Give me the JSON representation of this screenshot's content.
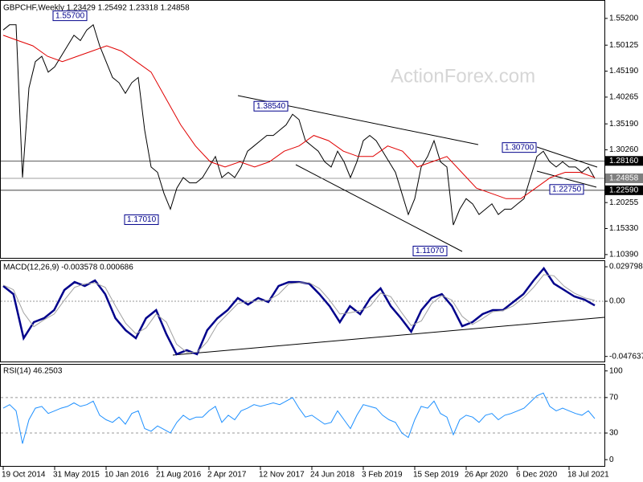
{
  "chart_data": [
    {
      "type": "line",
      "title": "GBPCHF,Weekly  1.23429 1.25492 1.23318 1.24858",
      "watermark": "ActionForex.com",
      "ylim": [
        1.0961,
        1.5854
      ],
      "yticks": [
        {
          "value": 1.552,
          "label": "1.55200"
        },
        {
          "value": 1.50125,
          "label": "1.50125"
        },
        {
          "value": 1.4519,
          "label": "1.45190"
        },
        {
          "value": 1.40265,
          "label": "1.40265"
        },
        {
          "value": 1.3519,
          "label": "1.35190"
        },
        {
          "value": 1.3026,
          "label": "1.30260"
        },
        {
          "value": 1.20255,
          "label": "1.20255"
        },
        {
          "value": 1.1533,
          "label": "1.15330"
        },
        {
          "value": 1.1039,
          "label": "1.10390"
        }
      ],
      "levels": [
        {
          "value": 1.2816,
          "label": "1.28160",
          "color": "#000000"
        },
        {
          "value": 1.2259,
          "label": "1.22590",
          "color": "#000000"
        },
        {
          "value": 1.24858,
          "label": "1.24858",
          "color": "#7f7f7f"
        }
      ],
      "price_labels": [
        {
          "value": 1.557,
          "label": "1.55700"
        },
        {
          "value": 1.3854,
          "label": "1.38540"
        },
        {
          "value": 1.1701,
          "label": "1.17010"
        },
        {
          "value": 1.1107,
          "label": "1.11070"
        },
        {
          "value": 1.307,
          "label": "1.30700"
        },
        {
          "value": 1.2275,
          "label": "1.22750"
        }
      ],
      "series": [
        {
          "color": "#000000",
          "values": [
            1.53,
            1.54,
            1.54,
            1.25,
            1.42,
            1.47,
            1.48,
            1.45,
            1.46,
            1.48,
            1.5,
            1.52,
            1.51,
            1.53,
            1.54,
            1.5,
            1.47,
            1.44,
            1.43,
            1.41,
            1.43,
            1.44,
            1.34,
            1.27,
            1.26,
            1.22,
            1.19,
            1.23,
            1.25,
            1.24,
            1.24,
            1.25,
            1.27,
            1.29,
            1.25,
            1.26,
            1.25,
            1.27,
            1.3,
            1.31,
            1.32,
            1.33,
            1.33,
            1.34,
            1.35,
            1.37,
            1.36,
            1.32,
            1.31,
            1.3,
            1.28,
            1.27,
            1.3,
            1.28,
            1.25,
            1.28,
            1.32,
            1.33,
            1.32,
            1.3,
            1.28,
            1.26,
            1.22,
            1.18,
            1.21,
            1.27,
            1.29,
            1.32,
            1.28,
            1.27,
            1.16,
            1.19,
            1.21,
            1.2,
            1.18,
            1.19,
            1.2,
            1.18,
            1.19,
            1.19,
            1.2,
            1.21,
            1.25,
            1.29,
            1.3,
            1.28,
            1.27,
            1.28,
            1.27,
            1.27,
            1.26,
            1.27,
            1.24858
          ]
        },
        {
          "color": "#e00000",
          "values": [
            1.52,
            1.51,
            1.5,
            1.48,
            1.47,
            1.48,
            1.49,
            1.5,
            1.49,
            1.47,
            1.45,
            1.4,
            1.35,
            1.31,
            1.28,
            1.27,
            1.28,
            1.27,
            1.28,
            1.3,
            1.31,
            1.33,
            1.32,
            1.3,
            1.29,
            1.29,
            1.31,
            1.3,
            1.27,
            1.28,
            1.29,
            1.26,
            1.23,
            1.22,
            1.21,
            1.21,
            1.23,
            1.25,
            1.26,
            1.26,
            1.25
          ]
        }
      ]
    },
    {
      "type": "line",
      "title": "MACD(12,26,9) -0.003578 0.000686",
      "ylim": [
        -0.0527,
        0.0347
      ],
      "yticks": [
        0.029798,
        {
          "value": 0,
          "label": "0.00"
        },
        -0.047637
      ],
      "series": [
        {
          "color": "#00008b",
          "width": 2.5,
          "values": [
            0.0132,
            0.0062,
            -0.0319,
            -0.018,
            -0.0146,
            -0.0076,
            0.0097,
            0.0166,
            0.0132,
            0.018,
            0.0062,
            -0.0146,
            -0.025,
            -0.0319,
            -0.0146,
            -0.0076,
            -0.0284,
            -0.0457,
            -0.0423,
            -0.0457,
            -0.025,
            -0.0146,
            -0.0076,
            0.0028,
            -0.0028,
            0.0028,
            -0.0007,
            0.0132,
            0.0166,
            0.0166,
            0.0152,
            0.0062,
            -0.0042,
            -0.018,
            -0.0042,
            -0.0111,
            0.0028,
            0.0111,
            -0.0042,
            -0.0146,
            -0.0263,
            -0.0076,
            0.0028,
            0.0062,
            -0.0042,
            -0.0215,
            -0.018,
            -0.0111,
            -0.0076,
            -0.0076,
            -0.0007,
            0.0062,
            0.018,
            0.0284,
            0.0152,
            0.0097,
            0.0042,
            0.0014,
            -0.003578
          ]
        },
        {
          "color": "#a0a0a0",
          "width": 1,
          "values": [
            0.014,
            0.01,
            -0.01,
            -0.022,
            -0.016,
            -0.011,
            0.001,
            0.012,
            0.015,
            0.016,
            0.012,
            -0.004,
            -0.019,
            -0.028,
            -0.023,
            -0.011,
            -0.018,
            -0.037,
            -0.044,
            -0.044,
            -0.035,
            -0.02,
            -0.011,
            -0.002,
            0.0,
            0.0,
            0.001,
            0.006,
            0.015,
            0.016,
            0.016,
            0.011,
            0.001,
            -0.011,
            -0.01,
            -0.008,
            -0.004,
            0.007,
            0.004,
            -0.009,
            -0.021,
            -0.017,
            -0.002,
            0.005,
            0.001,
            -0.013,
            -0.02,
            -0.015,
            -0.009,
            -0.008,
            -0.004,
            0.003,
            0.012,
            0.023,
            0.022,
            0.013,
            0.007,
            0.003,
            0.000686
          ]
        }
      ]
    },
    {
      "type": "line",
      "title": "RSI(14) 46.2503",
      "ylim": [
        -8,
        107
      ],
      "grid": "dashed",
      "yticks": [
        100,
        70,
        30,
        0
      ],
      "xticks": [
        "19 Oct 2014",
        "31 May 2015",
        "10 Jan 2016",
        "21 Aug 2016",
        "2 Apr 2017",
        "12 Nov 2017",
        "24 Jun 2018",
        "3 Feb 2019",
        "15 Sep 2019",
        "26 Apr 2020",
        "6 Dec 2020",
        "18 Jul 2021"
      ],
      "series": [
        {
          "color": "#1e90ff",
          "width": 1,
          "values": [
            58,
            62,
            55,
            18,
            45,
            58,
            60,
            52,
            55,
            58,
            60,
            64,
            60,
            62,
            66,
            50,
            45,
            42,
            48,
            40,
            52,
            55,
            35,
            32,
            38,
            34,
            30,
            42,
            50,
            45,
            48,
            48,
            55,
            60,
            42,
            50,
            45,
            55,
            58,
            62,
            60,
            62,
            64,
            62,
            66,
            70,
            58,
            48,
            50,
            45,
            40,
            42,
            55,
            45,
            35,
            50,
            62,
            60,
            58,
            50,
            45,
            42,
            30,
            25,
            45,
            60,
            58,
            66,
            52,
            48,
            28,
            45,
            50,
            48,
            42,
            50,
            52,
            45,
            50,
            52,
            55,
            58,
            65,
            72,
            75,
            60,
            55,
            58,
            55,
            52,
            50,
            55,
            46.2503
          ]
        }
      ]
    }
  ]
}
